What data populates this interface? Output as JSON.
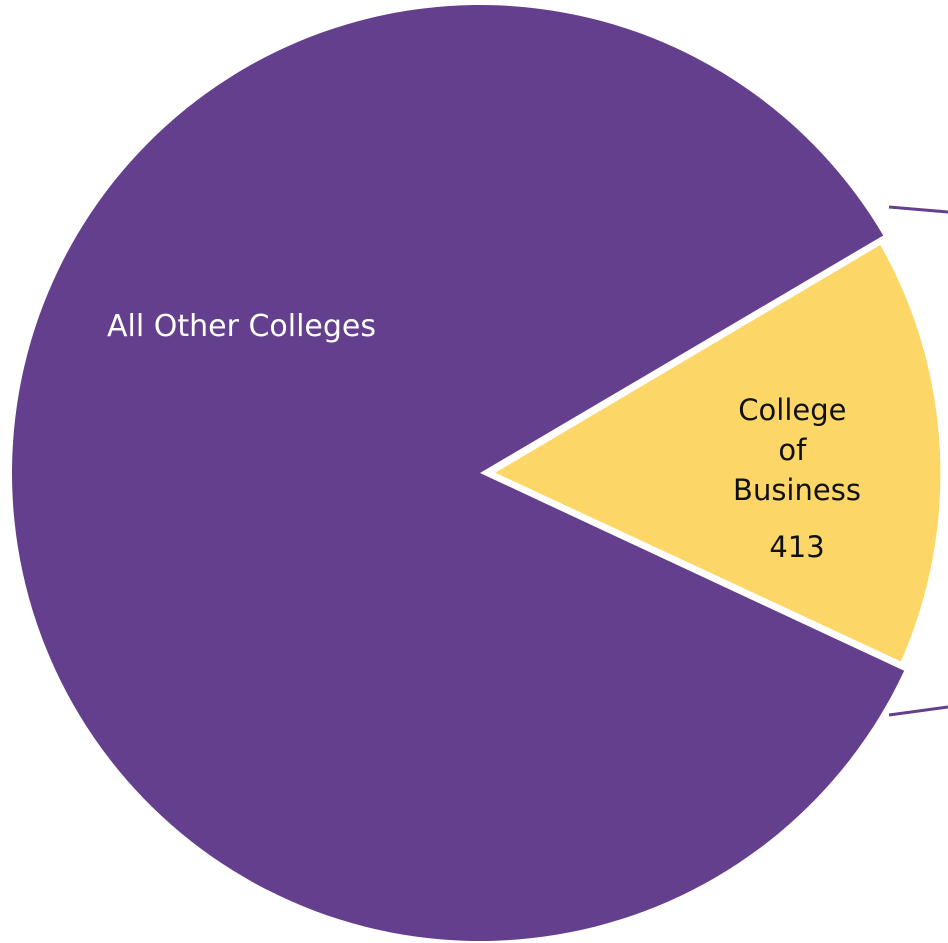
{
  "chart_data": {
    "type": "pie",
    "slices": [
      {
        "label": "All Other Colleges",
        "value": null,
        "value_label": "",
        "color": "#643f8e"
      },
      {
        "label": "College of Business",
        "value": 413,
        "value_label": "413",
        "color": "#fcd667"
      }
    ],
    "title": "",
    "legend": "none",
    "callout_line_color": "#643f8e"
  }
}
